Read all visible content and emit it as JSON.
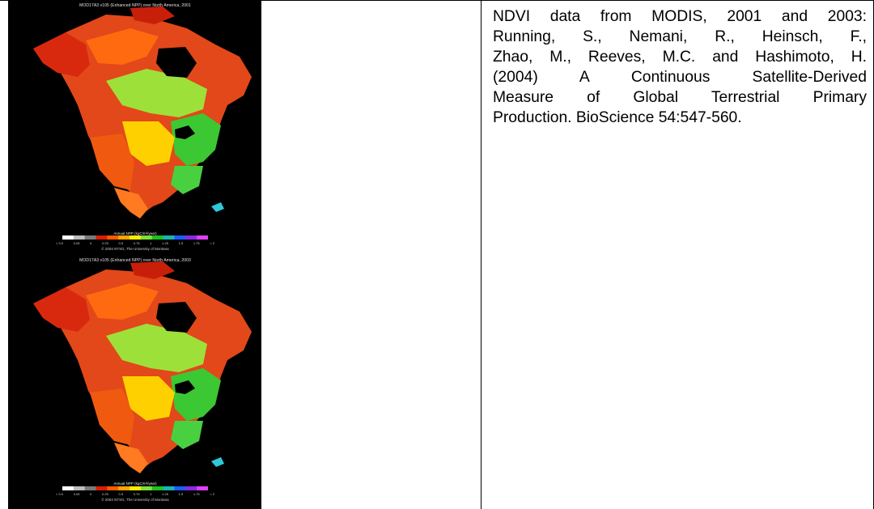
{
  "maps": [
    {
      "caption": "MOD17A3 v105 (Enhanced NPP) over North America, 2001",
      "legend_title": "Annual NPP (kgC/m²/year)",
      "legend_ticks": [
        "< 0.0",
        "0.05",
        "0",
        "0.25",
        "0.5",
        "0.75",
        "1",
        "1.25",
        "1.5",
        "1.75",
        "> 2"
      ],
      "credit": "© 2004 NTSG, The University of Montana"
    },
    {
      "caption": "MOD17A3 v105 (Enhanced NPP) over North America, 2003",
      "legend_title": "Annual NPP (kgC/m²/year)",
      "legend_ticks": [
        "< 0.0",
        "0.05",
        "0",
        "0.25",
        "0.5",
        "0.75",
        "1",
        "1.25",
        "1.5",
        "1.75",
        "> 2"
      ],
      "credit": "© 2004 NTSG, The University of Montana"
    }
  ],
  "legend_colors": [
    "#ffffff",
    "#bdbdbd",
    "#7a7a7a",
    "#d81e05",
    "#ff5a00",
    "#ffa500",
    "#ffee00",
    "#7fe03a",
    "#20c020",
    "#1ab3b3",
    "#1e5bff",
    "#8a2be2",
    "#e040fb"
  ],
  "citation": {
    "lines": [
      "NDVI data from MODIS, 2001 and 2003:",
      "Running, S., Nemani, R., Heinsch, F.,",
      "Zhao, M., Reeves, M.C. and Hashimoto, H.",
      "(2004) A Continuous Satellite-Derived",
      "Measure of Global Terrestrial Primary",
      "Production. BioScience 54:547-560."
    ]
  }
}
